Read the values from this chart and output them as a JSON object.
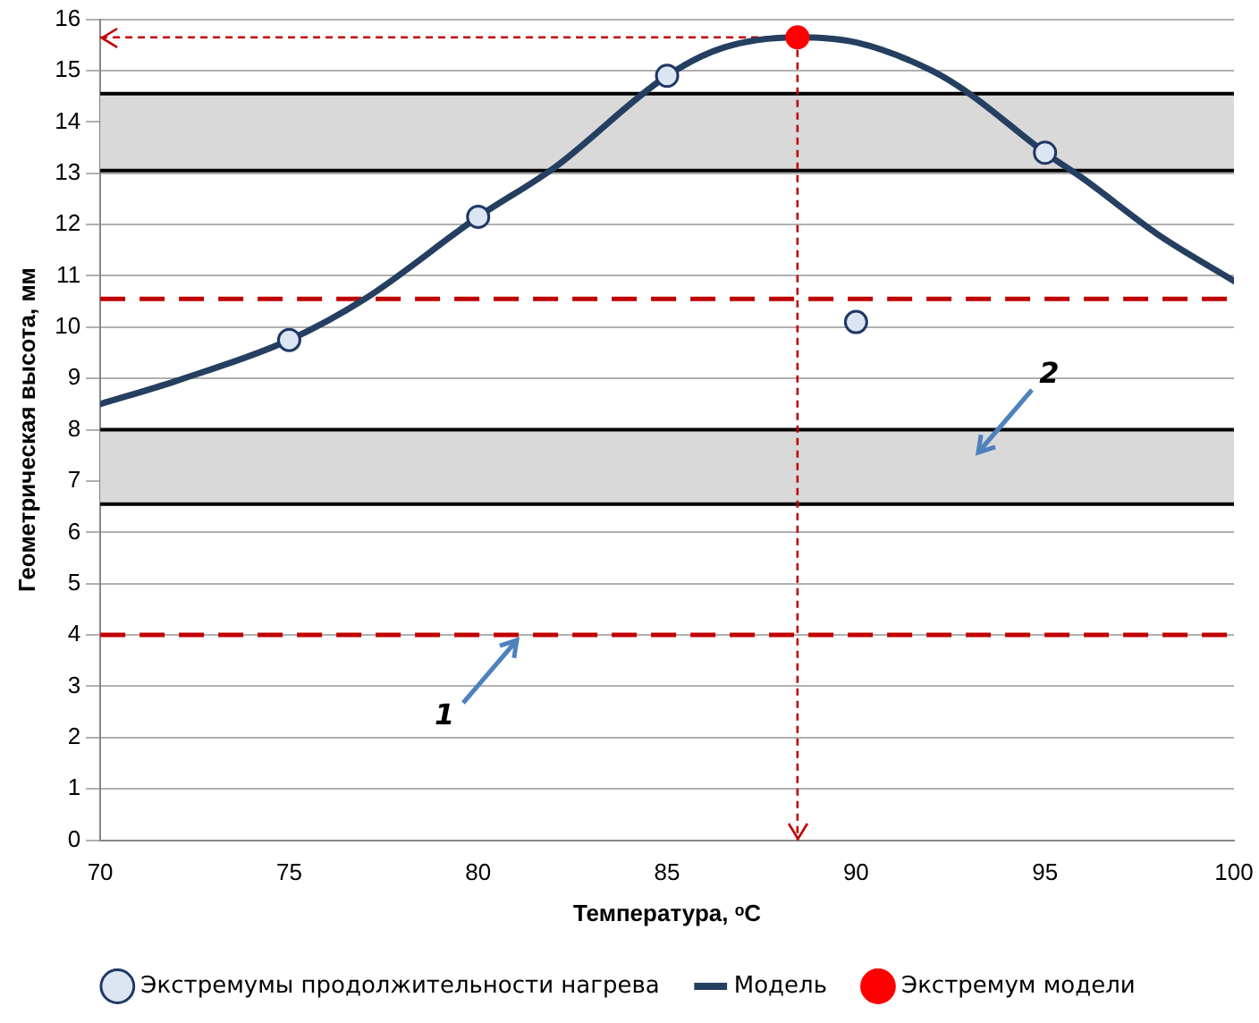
{
  "chart_data": {
    "type": "scatter",
    "xlabel": "Температура, ᵒC",
    "ylabel": "Геометрическая высота, мм",
    "xlim": [
      70,
      100
    ],
    "xticks": [
      70,
      75,
      80,
      85,
      90,
      95,
      100
    ],
    "ylim": [
      0,
      16
    ],
    "yticks": [
      0,
      1,
      2,
      3,
      4,
      5,
      6,
      7,
      8,
      9,
      10,
      11,
      12,
      13,
      14,
      15,
      16
    ],
    "grid": "y",
    "legend": "bottom",
    "marker": "circle",
    "series": [
      {
        "name": "Экстремумы продолжительности нагрева",
        "color": "#dce6f2",
        "x": [
          75,
          80,
          85,
          90,
          95
        ],
        "values": [
          9.75,
          12.15,
          14.9,
          10.1,
          13.4
        ]
      },
      {
        "name": "Модель",
        "type": "line",
        "color": "#243f60",
        "marker": "none",
        "line_style": "solid",
        "x": [
          70,
          72,
          75,
          77,
          80,
          82,
          85,
          86.5,
          88.45,
          90,
          92,
          93,
          95,
          96,
          98,
          100
        ],
        "values": [
          8.5,
          8.95,
          9.75,
          10.55,
          12.15,
          13.1,
          14.9,
          15.45,
          15.65,
          15.55,
          15.0,
          14.55,
          13.4,
          12.9,
          11.8,
          10.9
        ]
      },
      {
        "name": "Экстремум модели",
        "color": "#ff0000",
        "x": [
          88.45
        ],
        "values": [
          15.65
        ]
      }
    ],
    "bands": [
      {
        "axis": "y",
        "from": 13.05,
        "to": 14.55,
        "color": "#d9d9d9"
      },
      {
        "axis": "y",
        "from": 6.55,
        "to": 8.0,
        "color": "#d9d9d9"
      }
    ],
    "ref_lines": [
      {
        "axis": "y",
        "value": 10.55,
        "color": "#c00000",
        "line_style": "dashed"
      },
      {
        "axis": "y",
        "value": 4.0,
        "color": "#c00000",
        "line_style": "dashed"
      },
      {
        "axis": "x",
        "value": 88.45,
        "color": "#c00000",
        "line_style": "dotted"
      },
      {
        "axis": "y",
        "value": 15.65,
        "color": "#c00000",
        "line_style": "dotted"
      }
    ],
    "annotations": [
      {
        "text": "1",
        "x": 81,
        "y": 4
      },
      "2"
    ]
  }
}
